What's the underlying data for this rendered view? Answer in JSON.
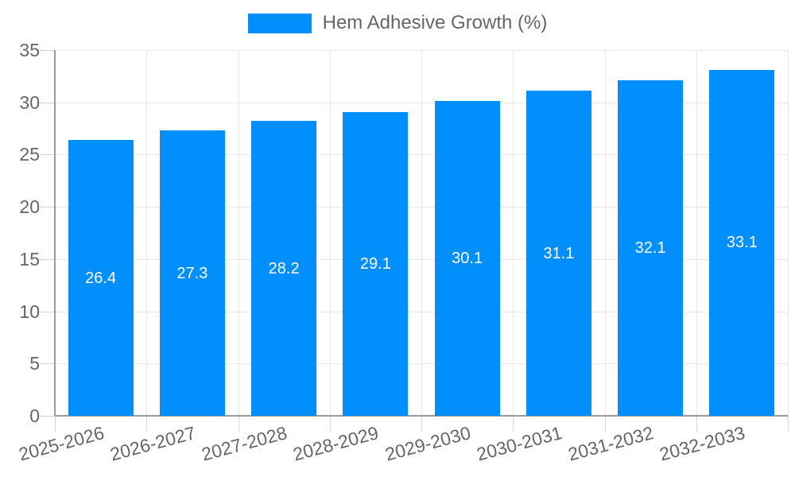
{
  "legend": {
    "label": "Hem Adhesive Growth (%)"
  },
  "colors": {
    "bar": "#008FFB",
    "grid": "#e8e8e8",
    "axis": "#9b9b9b",
    "tick": "#d4d4d4",
    "text": "#666666",
    "value_label": "#ffffff",
    "background": "#ffffff"
  },
  "chart_data": {
    "type": "bar",
    "title": "",
    "legend_label": "Hem Adhesive Growth (%)",
    "legend_position": "top",
    "categories": [
      "2025-2026",
      "2026-2027",
      "2027-2028",
      "2028-2029",
      "2029-2030",
      "2030-2031",
      "2031-2032",
      "2032-2033"
    ],
    "series": [
      {
        "name": "Hem Adhesive Growth (%)",
        "color": "#008FFB",
        "values": [
          26.4,
          27.3,
          28.2,
          29.1,
          30.1,
          31.1,
          32.1,
          33.1
        ]
      }
    ],
    "value_labels": {
      "position": "center",
      "color": "#ffffff"
    },
    "xlabel": "",
    "ylabel": "",
    "ylim": [
      0,
      35
    ],
    "yticks": [
      0,
      5,
      10,
      15,
      20,
      25,
      30,
      35
    ],
    "grid": true,
    "x_label_rotation": -15
  }
}
